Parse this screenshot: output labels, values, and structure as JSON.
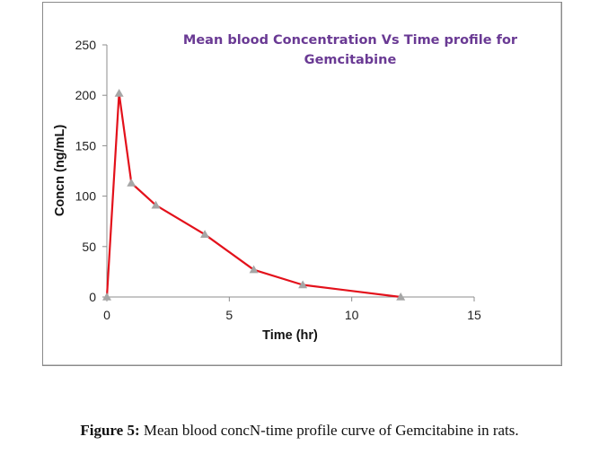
{
  "chart_data": {
    "type": "line",
    "title": "Mean blood Concentration Vs Time profile for Gemcitabine",
    "title_lines": [
      "Mean blood Concentration Vs Time profile for",
      "Gemcitabine"
    ],
    "xlabel": "Time (hr)",
    "ylabel": "Concn (ng/mL)",
    "xlim": [
      0,
      15
    ],
    "ylim": [
      0,
      250
    ],
    "xticks": [
      0,
      5,
      10,
      15
    ],
    "yticks": [
      0,
      50,
      100,
      150,
      200,
      250
    ],
    "grid": false,
    "legend": "none",
    "series": [
      {
        "name": "Gemcitabine",
        "x": [
          0,
          0.5,
          1,
          2,
          4,
          6,
          8,
          12
        ],
        "y": [
          0,
          202,
          113,
          91,
          62,
          27,
          12,
          0
        ],
        "line_color": "#e3111b",
        "marker": "triangle",
        "marker_color": "#a6a6a6"
      }
    ]
  },
  "caption": {
    "label": "Figure 5:",
    "text": " Mean blood concN-time profile curve of Gemcitabine in rats."
  }
}
